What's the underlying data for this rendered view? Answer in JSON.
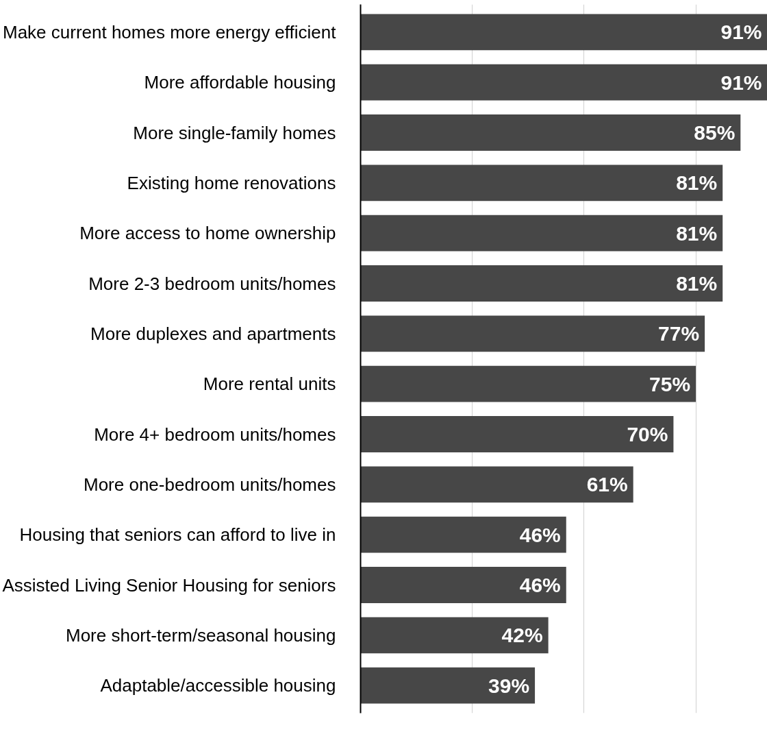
{
  "chart_data": {
    "type": "bar",
    "orientation": "horizontal",
    "categories": [
      "Make current homes more energy efficient",
      "More affordable housing",
      "More single-family homes",
      "Existing home renovations",
      "More access to home ownership",
      "More 2-3 bedroom units/homes",
      "More duplexes and apartments",
      "More rental units",
      "More 4+ bedroom units/homes",
      "More one-bedroom units/homes",
      "Housing that seniors can afford to live in",
      "Assisted Living Senior Housing for seniors",
      "More short-term/seasonal housing",
      "Adaptable/accessible housing"
    ],
    "values": [
      91,
      91,
      85,
      81,
      81,
      81,
      77,
      75,
      70,
      61,
      46,
      46,
      42,
      39
    ],
    "value_labels": [
      "91%",
      "91%",
      "85%",
      "81%",
      "81%",
      "81%",
      "77%",
      "75%",
      "70%",
      "61%",
      "46%",
      "46%",
      "42%",
      "39%"
    ],
    "color": "#474747",
    "xlim": [
      0,
      91
    ],
    "xticks": [
      {
        "value": 0,
        "label": null
      },
      {
        "value": 25,
        "label": null
      },
      {
        "value": 50,
        "label": null
      },
      {
        "value": 75,
        "label": null
      }
    ],
    "grid": "x",
    "tick_labels": "y"
  }
}
